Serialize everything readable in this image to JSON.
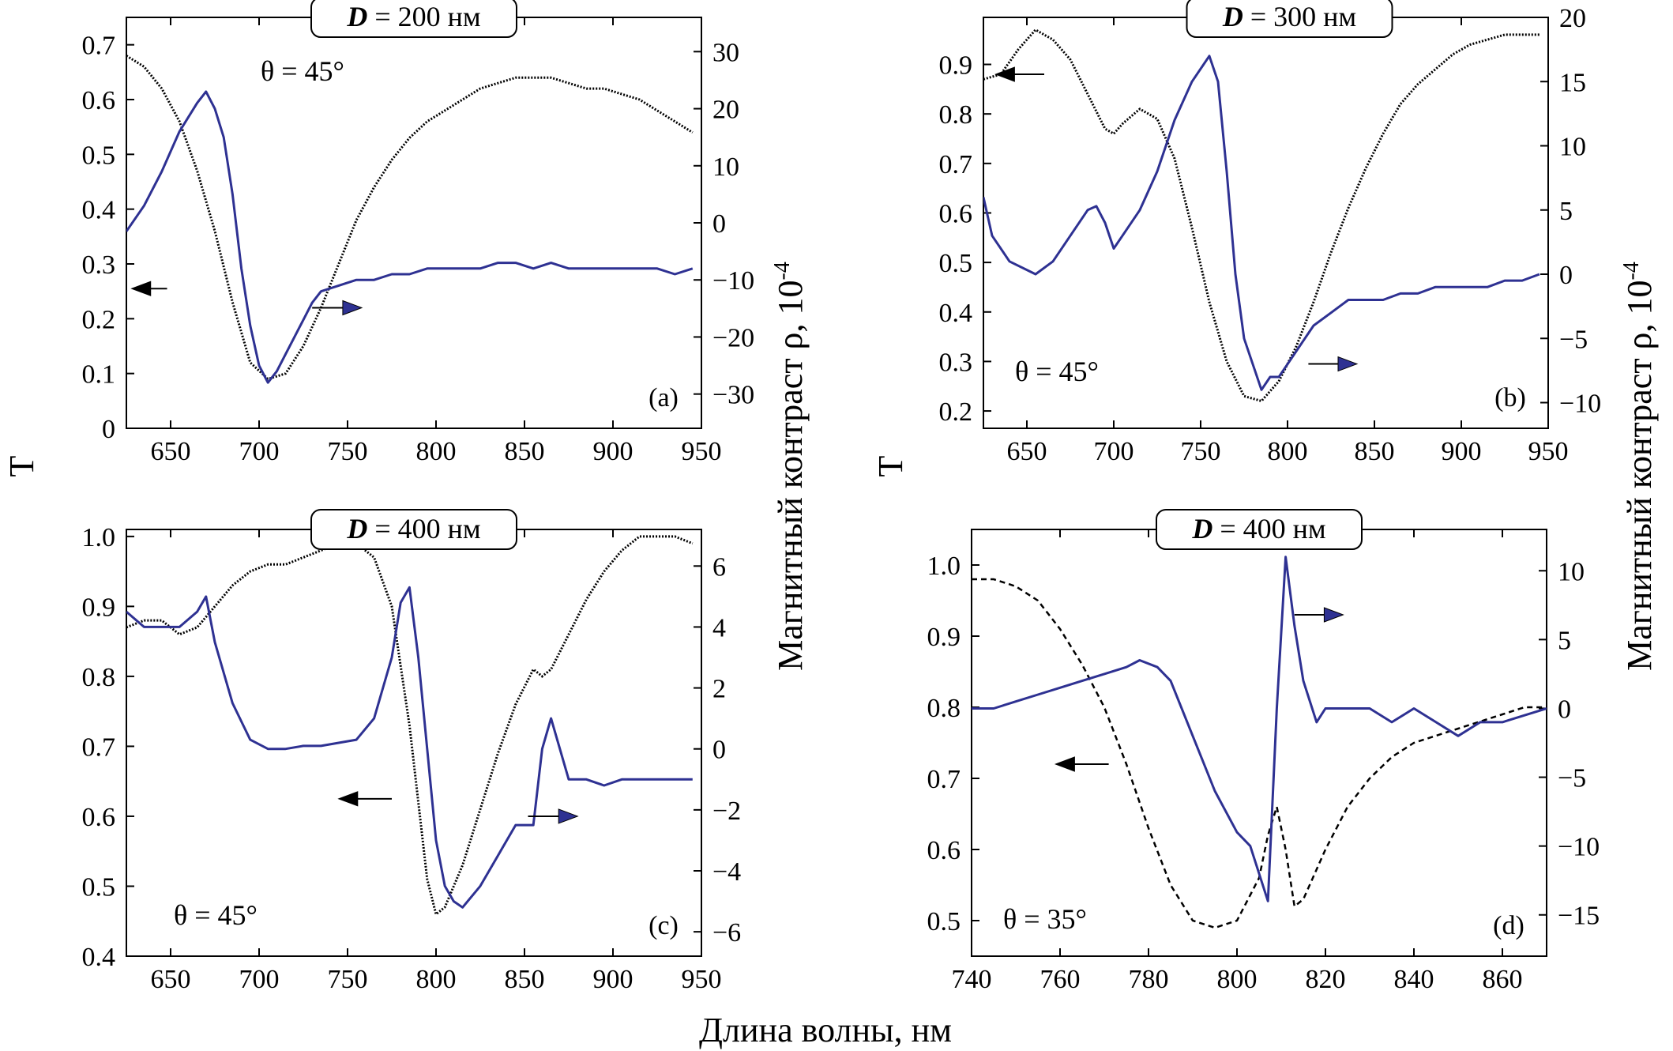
{
  "common": {
    "xlabel": "Длина волны, нм",
    "ylabel_left": "T",
    "ylabel_right": "Магнитный контраст ρ, 10",
    "ylabel_right_exp": "-4",
    "colors": {
      "transmission": "#000000",
      "contrast": "#2e3192"
    }
  },
  "chart_data": [
    {
      "id": "a",
      "type": "line",
      "panel_label": "(a)",
      "tag": {
        "symbol": "D",
        "text": " = 200 нм"
      },
      "angle": "θ = 45°",
      "xlim": [
        625,
        950
      ],
      "xticks": [
        650,
        700,
        750,
        800,
        850,
        900,
        950
      ],
      "ylim": [
        0,
        0.75
      ],
      "yticks": [
        0,
        0.1,
        0.2,
        0.3,
        0.4,
        0.5,
        0.6,
        0.7
      ],
      "ytick_labels": [
        "0",
        "0.1",
        "0.2",
        "0.3",
        "0.4",
        "0.5",
        "0.6",
        "0.7"
      ],
      "y2lim": [
        -36,
        36
      ],
      "y2ticks": [
        -30,
        -20,
        -10,
        0,
        10,
        20,
        30
      ],
      "y2tick_labels": [
        "−30",
        "−20",
        "−10",
        "0",
        "10",
        "20",
        "30"
      ],
      "series": [
        {
          "axis": "left",
          "style": "dotted",
          "x": [
            625,
            635,
            645,
            655,
            665,
            675,
            685,
            695,
            705,
            715,
            725,
            735,
            745,
            755,
            765,
            775,
            785,
            795,
            805,
            815,
            825,
            835,
            845,
            855,
            865,
            875,
            885,
            895,
            905,
            915,
            925,
            935,
            945
          ],
          "y": [
            0.68,
            0.66,
            0.62,
            0.56,
            0.47,
            0.36,
            0.23,
            0.12,
            0.09,
            0.1,
            0.15,
            0.22,
            0.3,
            0.38,
            0.44,
            0.49,
            0.53,
            0.56,
            0.58,
            0.6,
            0.62,
            0.63,
            0.64,
            0.64,
            0.64,
            0.63,
            0.62,
            0.62,
            0.61,
            0.6,
            0.58,
            0.56,
            0.54
          ]
        },
        {
          "axis": "right",
          "style": "solid",
          "x": [
            625,
            635,
            645,
            655,
            665,
            670,
            675,
            680,
            685,
            690,
            695,
            700,
            705,
            710,
            715,
            720,
            725,
            730,
            735,
            745,
            755,
            765,
            775,
            785,
            795,
            805,
            815,
            825,
            835,
            845,
            855,
            865,
            875,
            885,
            895,
            905,
            915,
            925,
            935,
            945
          ],
          "y": [
            -1.5,
            3,
            9,
            16,
            21,
            23,
            20,
            15,
            5,
            -8,
            -18,
            -25,
            -28,
            -26,
            -23,
            -20,
            -17,
            -14,
            -12,
            -11,
            -10,
            -10,
            -9,
            -9,
            -8,
            -8,
            -8,
            -8,
            -7,
            -7,
            -8,
            -7,
            -8,
            -8,
            -8,
            -8,
            -8,
            -8,
            -9,
            -8
          ]
        }
      ],
      "annotations": [
        {
          "arrow": "left",
          "from": [
            648,
            0.255
          ],
          "to": [
            628,
            0.255
          ]
        },
        {
          "arrow": "right",
          "from": [
            730,
            0.22
          ],
          "to": [
            758,
            0.22
          ]
        }
      ]
    },
    {
      "id": "b",
      "type": "line",
      "panel_label": "(b)",
      "tag": {
        "symbol": "D",
        "text": " = 300 нм"
      },
      "angle": "θ = 45°",
      "xlim": [
        625,
        950
      ],
      "xticks": [
        650,
        700,
        750,
        800,
        850,
        900,
        950
      ],
      "ylim": [
        0.165,
        0.995
      ],
      "yticks": [
        0.2,
        0.3,
        0.4,
        0.5,
        0.6,
        0.7,
        0.8,
        0.9
      ],
      "ytick_labels": [
        "0.2",
        "0.3",
        "0.4",
        "0.5",
        "0.6",
        "0.7",
        "0.8",
        "0.9"
      ],
      "y2lim": [
        -12,
        20
      ],
      "y2ticks": [
        -10,
        -5,
        0,
        5,
        10,
        15,
        20
      ],
      "y2tick_labels": [
        "−10",
        "−5",
        "0",
        "5",
        "10",
        "15",
        "20"
      ],
      "series": [
        {
          "axis": "left",
          "style": "dotted",
          "x": [
            625,
            635,
            645,
            655,
            665,
            675,
            685,
            695,
            700,
            705,
            715,
            725,
            735,
            745,
            755,
            765,
            775,
            785,
            795,
            805,
            815,
            825,
            835,
            845,
            855,
            865,
            875,
            885,
            895,
            905,
            915,
            925,
            935,
            945
          ],
          "y": [
            0.87,
            0.88,
            0.93,
            0.97,
            0.95,
            0.91,
            0.84,
            0.77,
            0.76,
            0.78,
            0.81,
            0.79,
            0.71,
            0.57,
            0.42,
            0.3,
            0.23,
            0.22,
            0.26,
            0.33,
            0.42,
            0.52,
            0.61,
            0.69,
            0.76,
            0.82,
            0.86,
            0.89,
            0.92,
            0.94,
            0.95,
            0.96,
            0.96,
            0.96
          ]
        },
        {
          "axis": "right",
          "style": "solid",
          "x": [
            625,
            630,
            640,
            655,
            665,
            675,
            685,
            690,
            695,
            700,
            705,
            715,
            725,
            735,
            745,
            755,
            760,
            765,
            770,
            775,
            780,
            785,
            790,
            795,
            800,
            805,
            815,
            825,
            835,
            845,
            855,
            865,
            875,
            885,
            895,
            905,
            915,
            925,
            935,
            945
          ],
          "y": [
            6,
            3,
            1,
            0,
            1,
            3,
            5,
            5.3,
            4,
            2,
            3,
            5,
            8,
            12,
            15,
            17,
            15,
            8,
            0,
            -5,
            -7,
            -9,
            -8,
            -8,
            -7,
            -6,
            -4,
            -3,
            -2,
            -2,
            -2,
            -1.5,
            -1.5,
            -1,
            -1,
            -1,
            -1,
            -0.5,
            -0.5,
            0
          ]
        }
      ],
      "annotations": [
        {
          "arrow": "left",
          "from": [
            660,
            0.88
          ],
          "to": [
            632,
            0.88
          ]
        },
        {
          "arrow": "right",
          "from": [
            812,
            0.295
          ],
          "to": [
            840,
            0.295
          ]
        }
      ]
    },
    {
      "id": "c",
      "type": "line",
      "panel_label": "(c)",
      "tag": {
        "symbol": "D",
        "text": " = 400 нм"
      },
      "angle": "θ = 45°",
      "xlim": [
        625,
        950
      ],
      "xticks": [
        650,
        700,
        750,
        800,
        850,
        900,
        950
      ],
      "ylim": [
        0.4,
        1.01
      ],
      "yticks": [
        0.4,
        0.5,
        0.6,
        0.7,
        0.8,
        0.9,
        1.0
      ],
      "ytick_labels": [
        "0.4",
        "0.5",
        "0.6",
        "0.7",
        "0.8",
        "0.9",
        "1.0"
      ],
      "y2lim": [
        -6.8,
        7.2
      ],
      "y2ticks": [
        -6,
        -4,
        -2,
        0,
        2,
        4,
        6
      ],
      "y2tick_labels": [
        "−6",
        "−4",
        "−2",
        "0",
        "2",
        "4",
        "6"
      ],
      "series": [
        {
          "axis": "left",
          "style": "dotted",
          "x": [
            625,
            635,
            645,
            655,
            665,
            675,
            685,
            695,
            705,
            715,
            725,
            735,
            745,
            755,
            765,
            775,
            785,
            795,
            800,
            805,
            815,
            825,
            835,
            845,
            855,
            860,
            865,
            875,
            885,
            895,
            905,
            915,
            925,
            935,
            945
          ],
          "y": [
            0.87,
            0.88,
            0.88,
            0.86,
            0.87,
            0.9,
            0.93,
            0.95,
            0.96,
            0.96,
            0.97,
            0.98,
            0.99,
            0.99,
            0.97,
            0.9,
            0.73,
            0.51,
            0.46,
            0.47,
            0.53,
            0.61,
            0.69,
            0.76,
            0.81,
            0.8,
            0.81,
            0.86,
            0.91,
            0.95,
            0.98,
            1.0,
            1.0,
            1.0,
            0.99
          ]
        },
        {
          "axis": "right",
          "style": "solid",
          "x": [
            625,
            635,
            645,
            655,
            665,
            670,
            675,
            685,
            695,
            705,
            715,
            725,
            735,
            745,
            755,
            765,
            775,
            780,
            785,
            790,
            795,
            800,
            805,
            810,
            815,
            825,
            835,
            845,
            855,
            860,
            865,
            875,
            885,
            895,
            905,
            915,
            925,
            935,
            945
          ],
          "y": [
            4.5,
            4,
            4,
            4,
            4.5,
            5,
            3.5,
            1.5,
            0.3,
            0,
            0,
            0.1,
            0.1,
            0.2,
            0.3,
            1,
            3,
            4.8,
            5.3,
            3,
            0,
            -3,
            -4.5,
            -5,
            -5.2,
            -4.5,
            -3.5,
            -2.5,
            -2.5,
            0,
            1,
            -1,
            -1,
            -1.2,
            -1,
            -1,
            -1,
            -1,
            -1
          ]
        }
      ],
      "annotations": [
        {
          "arrow": "left",
          "from": [
            775,
            0.625
          ],
          "to": [
            745,
            0.625
          ]
        },
        {
          "arrow": "right",
          "from": [
            852,
            0.6
          ],
          "to": [
            880,
            0.6
          ]
        }
      ]
    },
    {
      "id": "d",
      "type": "line",
      "panel_label": "(d)",
      "tag": {
        "symbol": "D",
        "text": " = 400 нм"
      },
      "angle": "θ = 35°",
      "xlim": [
        740,
        870
      ],
      "xticks": [
        740,
        760,
        780,
        800,
        820,
        840,
        860
      ],
      "ylim": [
        0.45,
        1.05
      ],
      "yticks": [
        0.5,
        0.6,
        0.7,
        0.8,
        0.9,
        1.0
      ],
      "ytick_labels": [
        "0.5",
        "0.6",
        "0.7",
        "0.8",
        "0.9",
        "1.0"
      ],
      "y2lim": [
        -18,
        13
      ],
      "y2ticks": [
        -15,
        -10,
        -5,
        0,
        5,
        10
      ],
      "y2tick_labels": [
        "−15",
        "−10",
        "−5",
        "0",
        "5",
        "10"
      ],
      "series": [
        {
          "axis": "left",
          "style": "dashed",
          "x": [
            740,
            745,
            750,
            755,
            760,
            765,
            770,
            775,
            780,
            785,
            790,
            795,
            800,
            805,
            807,
            809,
            811,
            813,
            815,
            820,
            825,
            830,
            835,
            840,
            845,
            850,
            855,
            860,
            865,
            870
          ],
          "y": [
            0.98,
            0.98,
            0.97,
            0.95,
            0.91,
            0.86,
            0.8,
            0.72,
            0.63,
            0.55,
            0.5,
            0.49,
            0.5,
            0.56,
            0.62,
            0.66,
            0.6,
            0.52,
            0.53,
            0.6,
            0.66,
            0.7,
            0.73,
            0.75,
            0.76,
            0.77,
            0.78,
            0.79,
            0.8,
            0.8
          ]
        },
        {
          "axis": "right",
          "style": "solid",
          "x": [
            740,
            745,
            750,
            755,
            760,
            765,
            770,
            775,
            778,
            782,
            785,
            790,
            795,
            800,
            803,
            806,
            807,
            809,
            811,
            813,
            815,
            818,
            820,
            825,
            830,
            835,
            840,
            845,
            850,
            855,
            860,
            865,
            870
          ],
          "y": [
            0,
            0,
            0.5,
            1,
            1.5,
            2,
            2.5,
            3,
            3.5,
            3,
            2,
            -2,
            -6,
            -9,
            -10,
            -13,
            -14,
            0,
            11,
            6,
            2,
            -1,
            0,
            0,
            0,
            -1,
            0,
            -1,
            -2,
            -1,
            -1,
            -0.5,
            0
          ]
        }
      ],
      "annotations": [
        {
          "arrow": "left",
          "from": [
            771,
            0.72
          ],
          "to": [
            759,
            0.72
          ]
        },
        {
          "arrow": "right",
          "from": [
            813,
            0.93
          ],
          "to": [
            824,
            0.93
          ]
        }
      ]
    }
  ]
}
